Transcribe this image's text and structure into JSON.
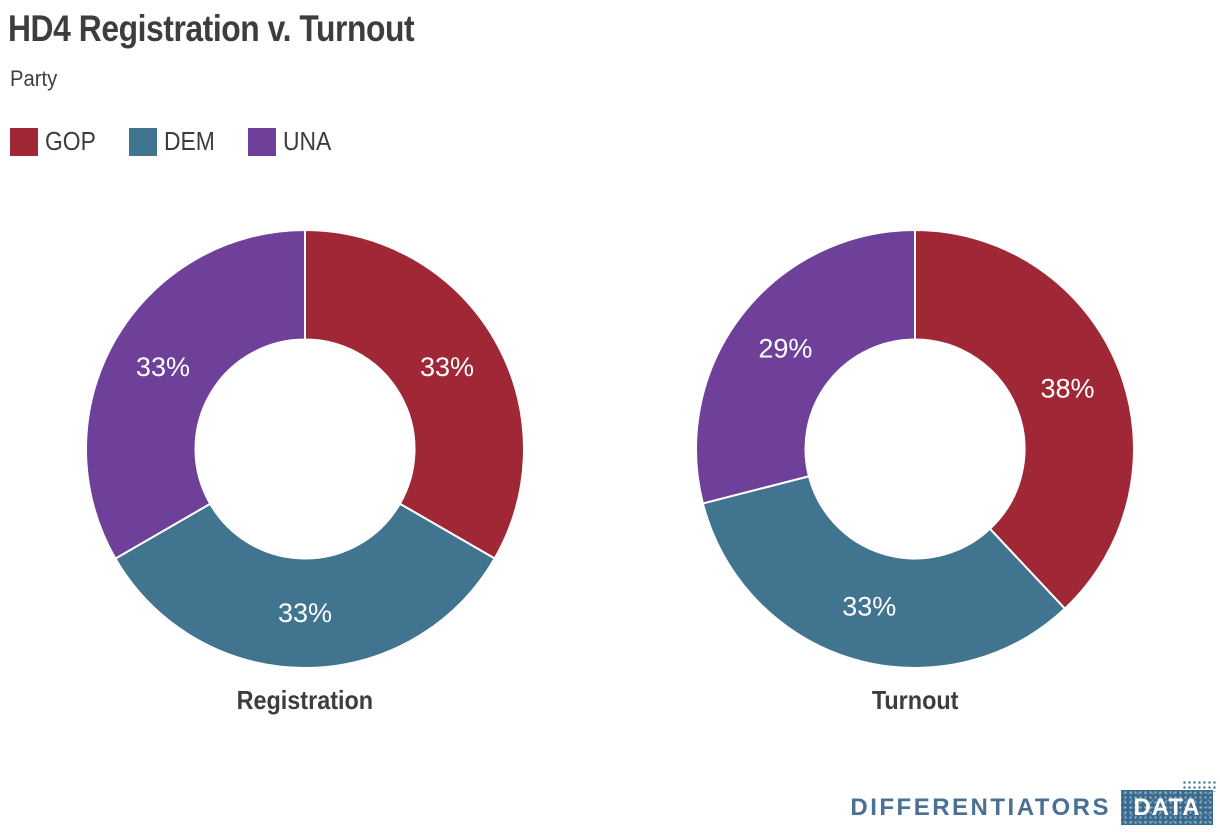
{
  "header": {
    "title": "HD4 Registration v. Turnout",
    "subtitle": "Party"
  },
  "legend": {
    "items": [
      {
        "label": "GOP",
        "color": "#a02836"
      },
      {
        "label": "DEM",
        "color": "#41758f"
      },
      {
        "label": "UNA",
        "color": "#6e4099"
      }
    ]
  },
  "chart_data": [
    {
      "type": "pie",
      "variant": "donut",
      "title": "Registration",
      "categories": [
        "GOP",
        "DEM",
        "UNA"
      ],
      "values": [
        33.33,
        33.33,
        33.34
      ],
      "labels": [
        "33%",
        "33%",
        "33%"
      ],
      "colors": [
        "#a02836",
        "#41758f",
        "#6e4099"
      ],
      "inner_radius_ratio": 0.5,
      "start_angle_deg": 0,
      "direction": "clockwise",
      "legend_position": "top-left"
    },
    {
      "type": "pie",
      "variant": "donut",
      "title": "Turnout",
      "categories": [
        "GOP",
        "DEM",
        "UNA"
      ],
      "values": [
        38,
        33,
        29
      ],
      "labels": [
        "38%",
        "33%",
        "29%"
      ],
      "colors": [
        "#a02836",
        "#41758f",
        "#6e4099"
      ],
      "inner_radius_ratio": 0.5,
      "start_angle_deg": 0,
      "direction": "clockwise",
      "legend_position": "top-left"
    }
  ],
  "branding": {
    "wordmark": "DIFFERENTIATORS",
    "box_label": "DATA",
    "text_color": "#4a7096",
    "box_color": "#396a8e"
  },
  "style": {
    "background": "#ffffff",
    "text_color": "#3d3d3d",
    "slice_label_color": "#ffffff",
    "slice_border_color": "#ffffff"
  }
}
